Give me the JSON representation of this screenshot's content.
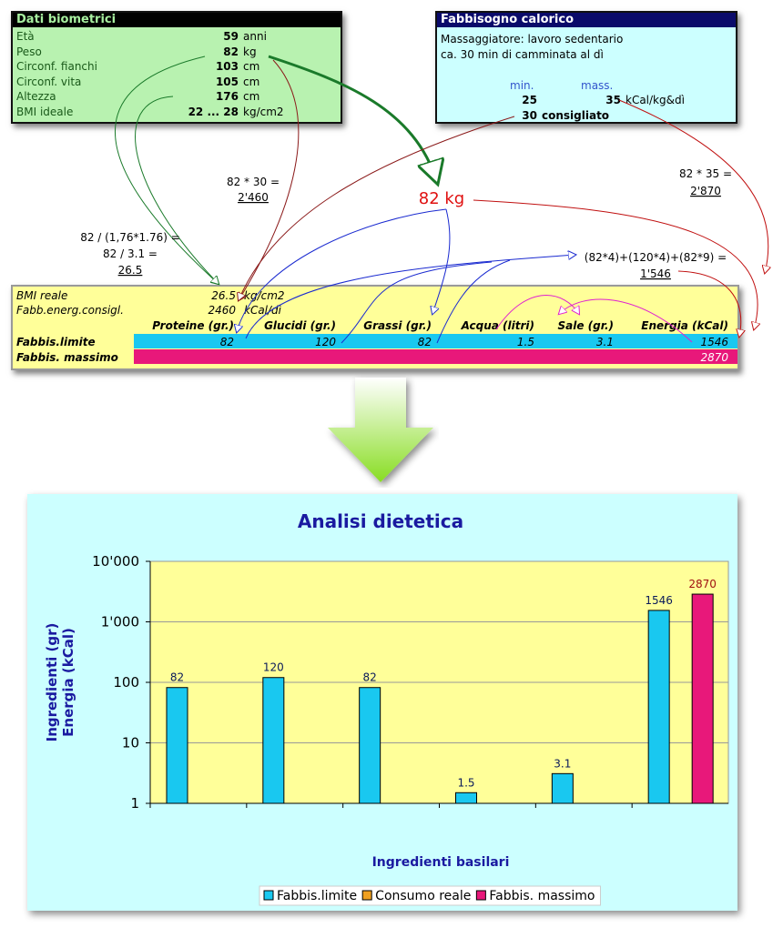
{
  "biometrics": {
    "title": "Dati biometrici",
    "rows": [
      [
        "Età",
        "59",
        "anni"
      ],
      [
        "Peso",
        "82",
        "kg"
      ],
      [
        "Circonf. fianchi",
        "103",
        "cm"
      ],
      [
        "Circonf. vita",
        "105",
        "cm"
      ],
      [
        "Altezza",
        "176",
        "cm"
      ],
      [
        "BMI ideale",
        "22 ... 28",
        "kg/cm2"
      ]
    ]
  },
  "calories": {
    "title": "Fabbisogno calorico",
    "lines": [
      "Massaggiatore: lavoro sedentario",
      "ca. 30 min di camminata al dì"
    ],
    "header": [
      "min.",
      "mass."
    ],
    "values": [
      "25",
      "35"
    ],
    "unit": "kCal/kg&dì",
    "recommended": "30",
    "recommended_label": "consigliato"
  },
  "annotations": {
    "weight": "82 kg",
    "energy_min": [
      "82 * 30 =",
      "2'460"
    ],
    "energy_max": [
      "82 * 35 =",
      "2'870"
    ],
    "bmi": [
      "82 / (1,76*1.76) =",
      "82 / 3.1 =",
      "26.5"
    ],
    "energy": [
      "(82*4)+(120*4)+(82*9) =",
      "1'546"
    ]
  },
  "results": {
    "bmi": [
      "BMI reale",
      "26.5",
      "kg/cm2"
    ],
    "energy": [
      "Fabb.energ.consigl.",
      "2460",
      "kCal/dì"
    ],
    "columns": [
      "Proteine (gr.)",
      "Glucidi (gr.)",
      "Grassi (gr.)",
      "Acqua (litri)",
      "Sale (gr.)",
      "Energia (kCal)"
    ],
    "limit": {
      "label": "Fabbis.limite",
      "values": [
        "82",
        "120",
        "82",
        "1.5",
        "3.1",
        "1546"
      ]
    },
    "max": {
      "label": "Fabbis. massimo",
      "energy": "2870"
    }
  },
  "chart_data": {
    "type": "bar",
    "title": "Analisi dietetica",
    "y_label": [
      "Ingredienti (gr)",
      "Energia (kCal)"
    ],
    "x_label": "Ingredienti basilari",
    "categories": [
      "Proteine (gr.)",
      "Glucidi (gr.)",
      "Grassi (gr.)",
      "Acqua (litri)",
      "Sale (gr.)",
      "Energia (kCal)"
    ],
    "series": [
      {
        "name": "Fabbis.limite",
        "color": "#19c8f0",
        "label_color": "#0a1a5a",
        "values": [
          82,
          120,
          82,
          1.5,
          3.1,
          1546
        ]
      },
      {
        "name": "Consumo reale",
        "color": "#f0a020",
        "label_color": "#0a1a5a",
        "values": [
          null,
          null,
          null,
          null,
          null,
          null
        ]
      },
      {
        "name": "Fabbis. massimo",
        "color": "#e8187a",
        "label_color": "#a01010",
        "values": [
          null,
          null,
          null,
          null,
          null,
          2870
        ]
      }
    ],
    "log_scale": true,
    "ylim": [
      1,
      10000
    ],
    "yticks": [
      1,
      10,
      100,
      {
        "value": 1000,
        "label": "1'000"
      },
      {
        "value": 10000,
        "label": "10'000"
      }
    ],
    "grid": true,
    "legend": "bottom"
  }
}
